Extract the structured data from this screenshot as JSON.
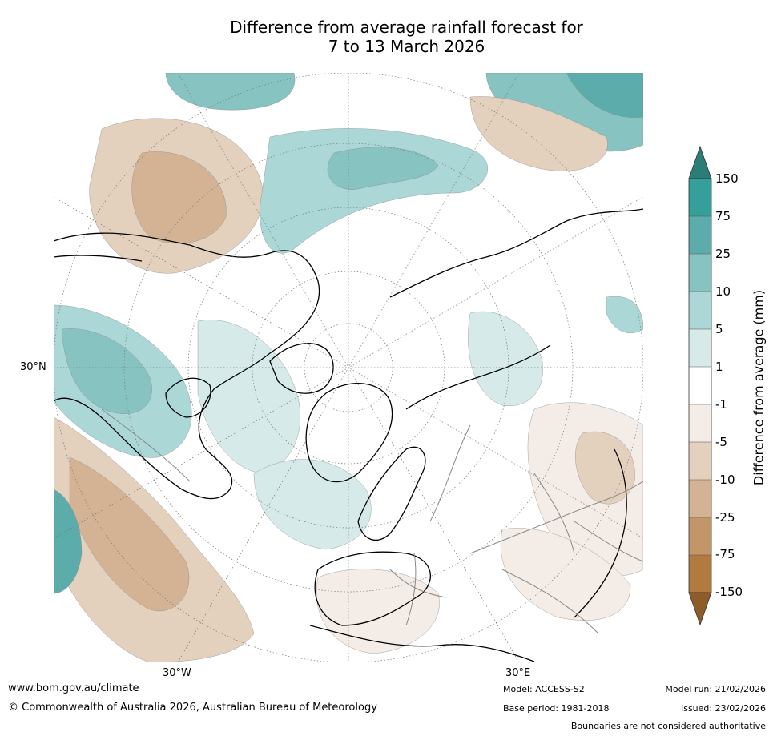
{
  "title": {
    "line1": "Difference from average rainfall forecast for",
    "line2": "7 to 13 March 2026"
  },
  "map": {
    "projection": "north-polar-stereographic",
    "labels": {
      "lat_30n": "30°N",
      "lon_30w": "30°W",
      "lon_30e": "30°E"
    }
  },
  "colorbar": {
    "title": "Difference from average (mm)",
    "ticks": [
      "150",
      "75",
      "25",
      "10",
      "5",
      "1",
      "-1",
      "-5",
      "-10",
      "-25",
      "-75",
      "-150"
    ],
    "colors": {
      "above_150": "#2b7d78",
      "b75_150": "#359f99",
      "b25_75": "#5bacaa",
      "b10_25": "#86c3c1",
      "b5_10": "#abd7d7",
      "b1_5": "#d6eae9",
      "b_neutral": "#ffffff",
      "bm1_m5": "#f4ece7",
      "bm5_m10": "#e3d0bd",
      "bm10_m25": "#d3b394",
      "bm25_m75": "#c39669",
      "bm75_m150": "#b17a40",
      "below_m150": "#8e5c27"
    }
  },
  "footer": {
    "url": "www.bom.gov.au/climate",
    "copyright": "© Commonwealth of Australia 2026, Australian Bureau of Meteorology",
    "model": "Model: ACCESS-S2",
    "base_period": "Base period: 1981-2018",
    "model_run": "Model run: 21/02/2026",
    "issued": "Issued: 23/02/2026",
    "disclaimer": "Boundaries are not considered authoritative"
  }
}
